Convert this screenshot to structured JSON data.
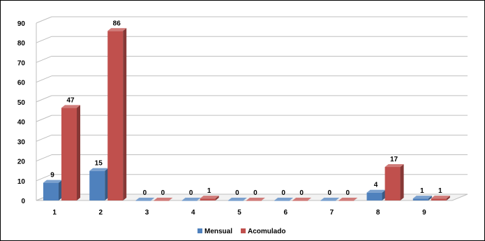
{
  "chart_data": {
    "type": "bar",
    "title": "",
    "xlabel": "",
    "ylabel": "",
    "categories": [
      "1",
      "2",
      "3",
      "4",
      "5",
      "6",
      "7",
      "8",
      "9"
    ],
    "series": [
      {
        "name": "Mensual",
        "color": "#4f81bd",
        "values": [
          9,
          15,
          0,
          0,
          0,
          0,
          0,
          4,
          1
        ]
      },
      {
        "name": "Acomulado",
        "color": "#c0504d",
        "values": [
          47,
          86,
          0,
          1,
          0,
          0,
          0,
          17,
          1
        ]
      }
    ],
    "ylim": [
      0,
      90
    ],
    "yticks": [
      0,
      10,
      20,
      30,
      40,
      50,
      60,
      70,
      80,
      90
    ],
    "grid": true,
    "legend_position": "bottom",
    "data_labels": true
  }
}
